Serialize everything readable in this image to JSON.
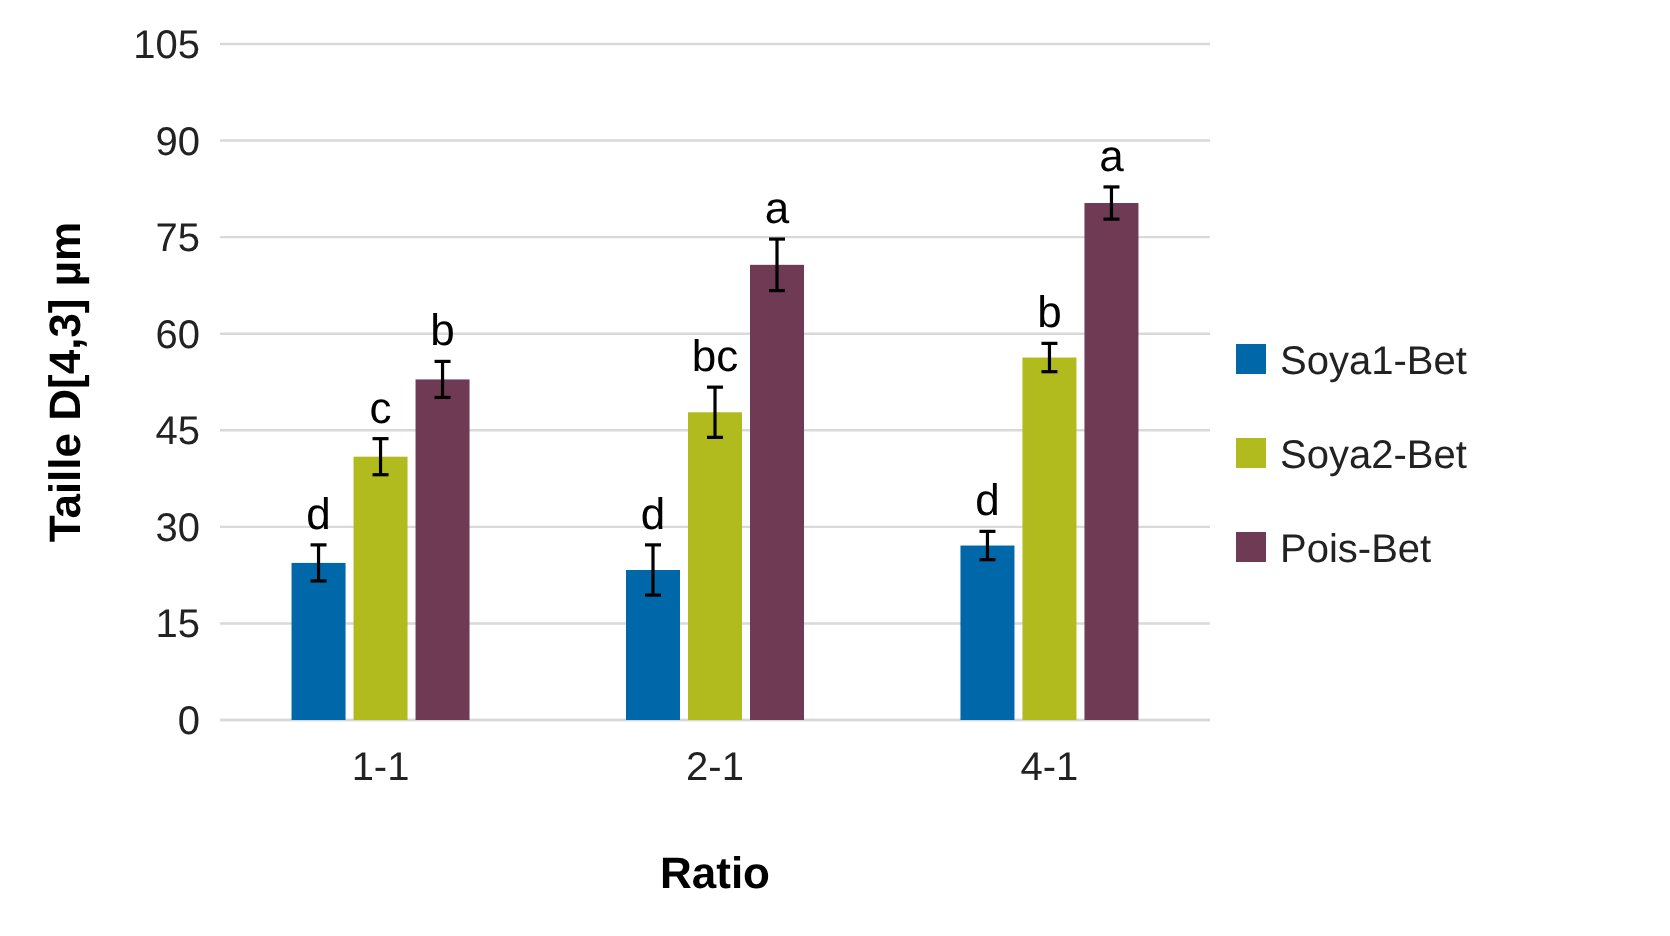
{
  "chart_data": {
    "type": "bar",
    "xlabel": "Ratio",
    "ylabel": "Taille D[4,3] µm",
    "categories": [
      "1-1",
      "2-1",
      "4-1"
    ],
    "series": [
      {
        "name": "Soya1-Bet",
        "color": "#0068a8",
        "values": [
          24.4,
          23.3,
          27.1
        ],
        "errors": [
          2.8,
          3.9,
          2.2
        ],
        "value_labels": [
          "d",
          "d",
          "d"
        ]
      },
      {
        "name": "Soya2-Bet",
        "color": "#b2bb1e",
        "values": [
          40.9,
          47.8,
          56.3
        ],
        "errors": [
          2.8,
          3.9,
          2.2
        ],
        "value_labels": [
          "c",
          "bc",
          "b"
        ]
      },
      {
        "name": "Pois-Bet",
        "color": "#6e3a54",
        "values": [
          52.9,
          70.7,
          80.3
        ],
        "errors": [
          2.8,
          4,
          2.5
        ],
        "value_labels": [
          "b",
          "a",
          "a"
        ]
      }
    ],
    "ylim": [
      0,
      105
    ],
    "yticks": [
      0,
      15,
      30,
      45,
      60,
      75,
      90,
      105
    ],
    "grid": "y",
    "legend": "right"
  }
}
